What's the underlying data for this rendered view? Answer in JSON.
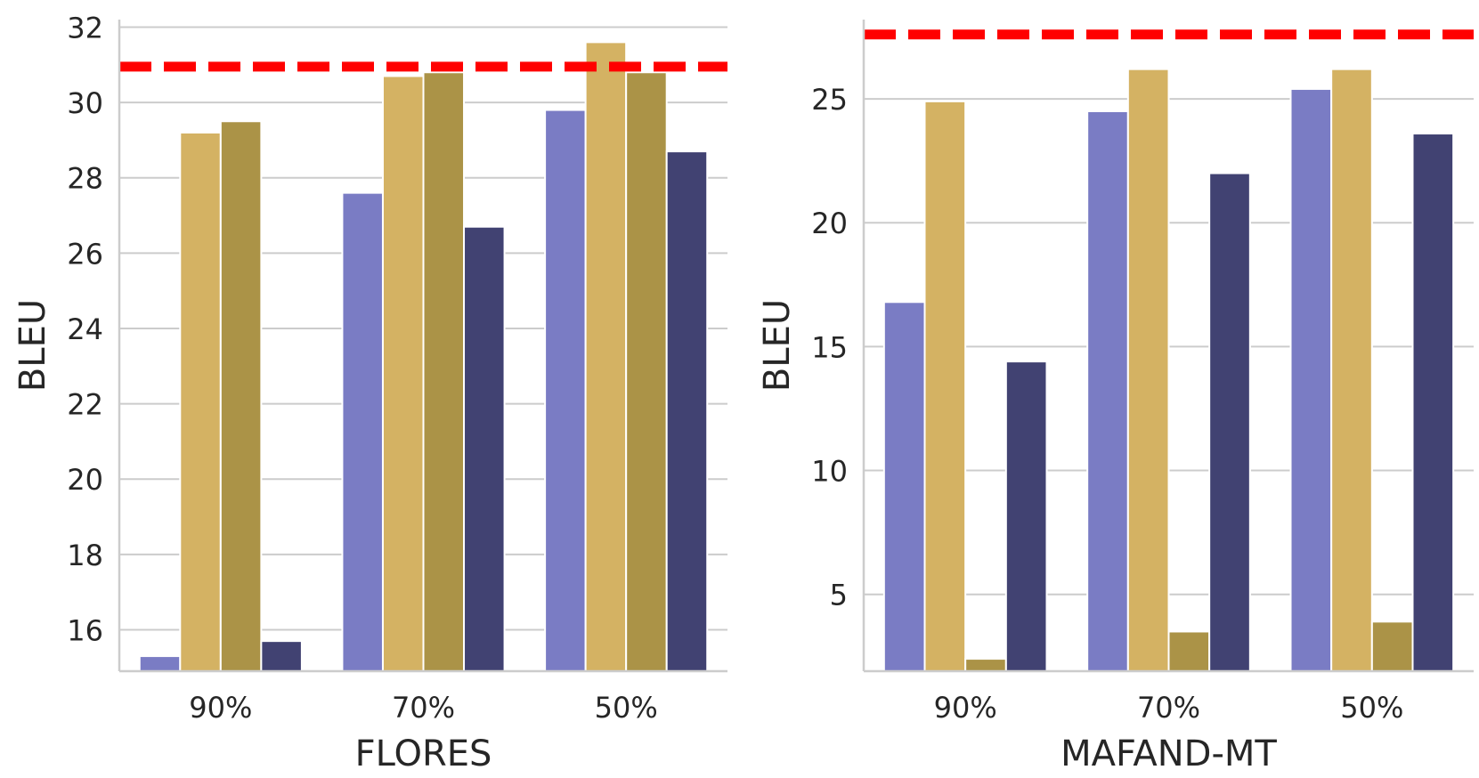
{
  "chart_data": [
    {
      "type": "bar",
      "xlabel": "FLORES",
      "ylabel": "BLEU",
      "categories": [
        "90%",
        "70%",
        "50%"
      ],
      "ylim": [
        14.9,
        32.2
      ],
      "yticks": [
        16,
        18,
        20,
        22,
        24,
        26,
        28,
        30,
        32
      ],
      "reference_line": 30.95,
      "grid": "horizontal",
      "series": [
        {
          "values": [
            15.3,
            27.6,
            29.8
          ],
          "color": "#7a7cc4"
        },
        {
          "values": [
            29.2,
            30.7,
            31.6
          ],
          "color": "#d4b263"
        },
        {
          "values": [
            29.5,
            30.8,
            30.8
          ],
          "color": "#ab9347"
        },
        {
          "values": [
            15.7,
            26.7,
            28.7
          ],
          "color": "#414272"
        }
      ]
    },
    {
      "type": "bar",
      "xlabel": "MAFAND-MT",
      "ylabel": "BLEU",
      "categories": [
        "90%",
        "70%",
        "50%"
      ],
      "ylim": [
        1.9,
        28.2
      ],
      "yticks": [
        5,
        10,
        15,
        20,
        25
      ],
      "reference_line": 27.6,
      "grid": "horizontal",
      "series": [
        {
          "values": [
            16.8,
            24.5,
            25.4
          ],
          "color": "#7a7cc4"
        },
        {
          "values": [
            24.9,
            26.2,
            26.2
          ],
          "color": "#d4b263"
        },
        {
          "values": [
            2.4,
            3.5,
            3.9
          ],
          "color": "#ab9347"
        },
        {
          "values": [
            14.4,
            22.0,
            23.6
          ],
          "color": "#414272"
        }
      ]
    }
  ]
}
